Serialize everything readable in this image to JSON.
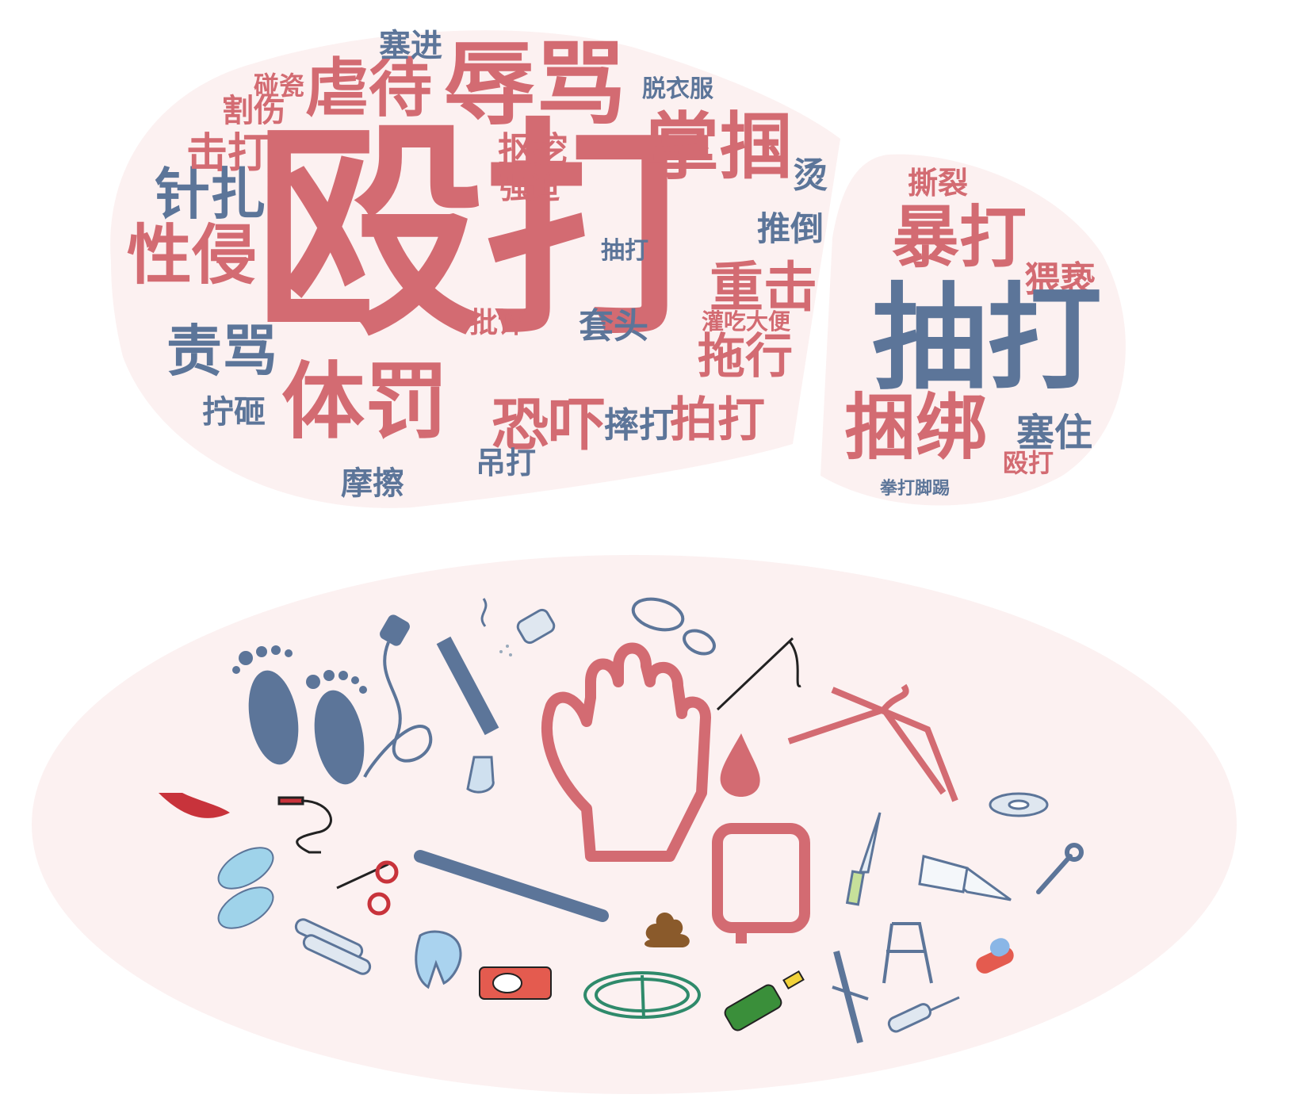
{
  "colors": {
    "red": "#d36b72",
    "blue": "#5c7599",
    "blob": "#fcf1f1"
  },
  "cloud_left": {
    "w01": "殴打",
    "w02": "辱骂",
    "w03": "虐待",
    "w04": "掌掴",
    "w05": "体罚",
    "w06": "性侵",
    "w07": "针扎",
    "w08": "责骂",
    "w09": "击打",
    "w10": "割伤",
    "w11": "碰瓷",
    "w12": "塞进",
    "w13": "脱衣服",
    "w14": "抠挖",
    "w15": "强迫",
    "w16": "烫",
    "w17": "推倒",
    "w18": "抽打",
    "w19": "重击",
    "w20": "灌吃大便",
    "w21": "拖行",
    "w22": "批评",
    "w23": "套头",
    "w24": "恐吓",
    "w25": "摔打",
    "w26": "拍打",
    "w27": "吊打",
    "w28": "拧砸",
    "w29": "摩擦"
  },
  "cloud_right": {
    "w01": "撕裂",
    "w02": "暴打",
    "w03": "猥亵",
    "w04": "抽打",
    "w05": "捆绑",
    "w06": "塞住",
    "w07": "殴打",
    "w08": "拳打脚踢"
  },
  "icons": [
    "footprints-icon",
    "power-cord-icon",
    "cigarette-icon",
    "salt-shaker-icon",
    "shoe-print-icon",
    "needle-thread-icon",
    "hand-icon",
    "blood-drop-icon",
    "hangers-icon",
    "chili-icon",
    "socks-icon",
    "jump-rope-icon",
    "flip-flops-icon",
    "scissors-icon",
    "baseball-bat-icon",
    "fist-icon",
    "knife-icon",
    "tape-icon",
    "book-icon",
    "wrench-icon",
    "poop-icon",
    "tubes-icon",
    "tooth-icon",
    "belt-icon",
    "rope-coil-icon",
    "bottle-icon",
    "bamboo-icon",
    "chair-icon",
    "screwdriver-icon",
    "pill-icon"
  ]
}
